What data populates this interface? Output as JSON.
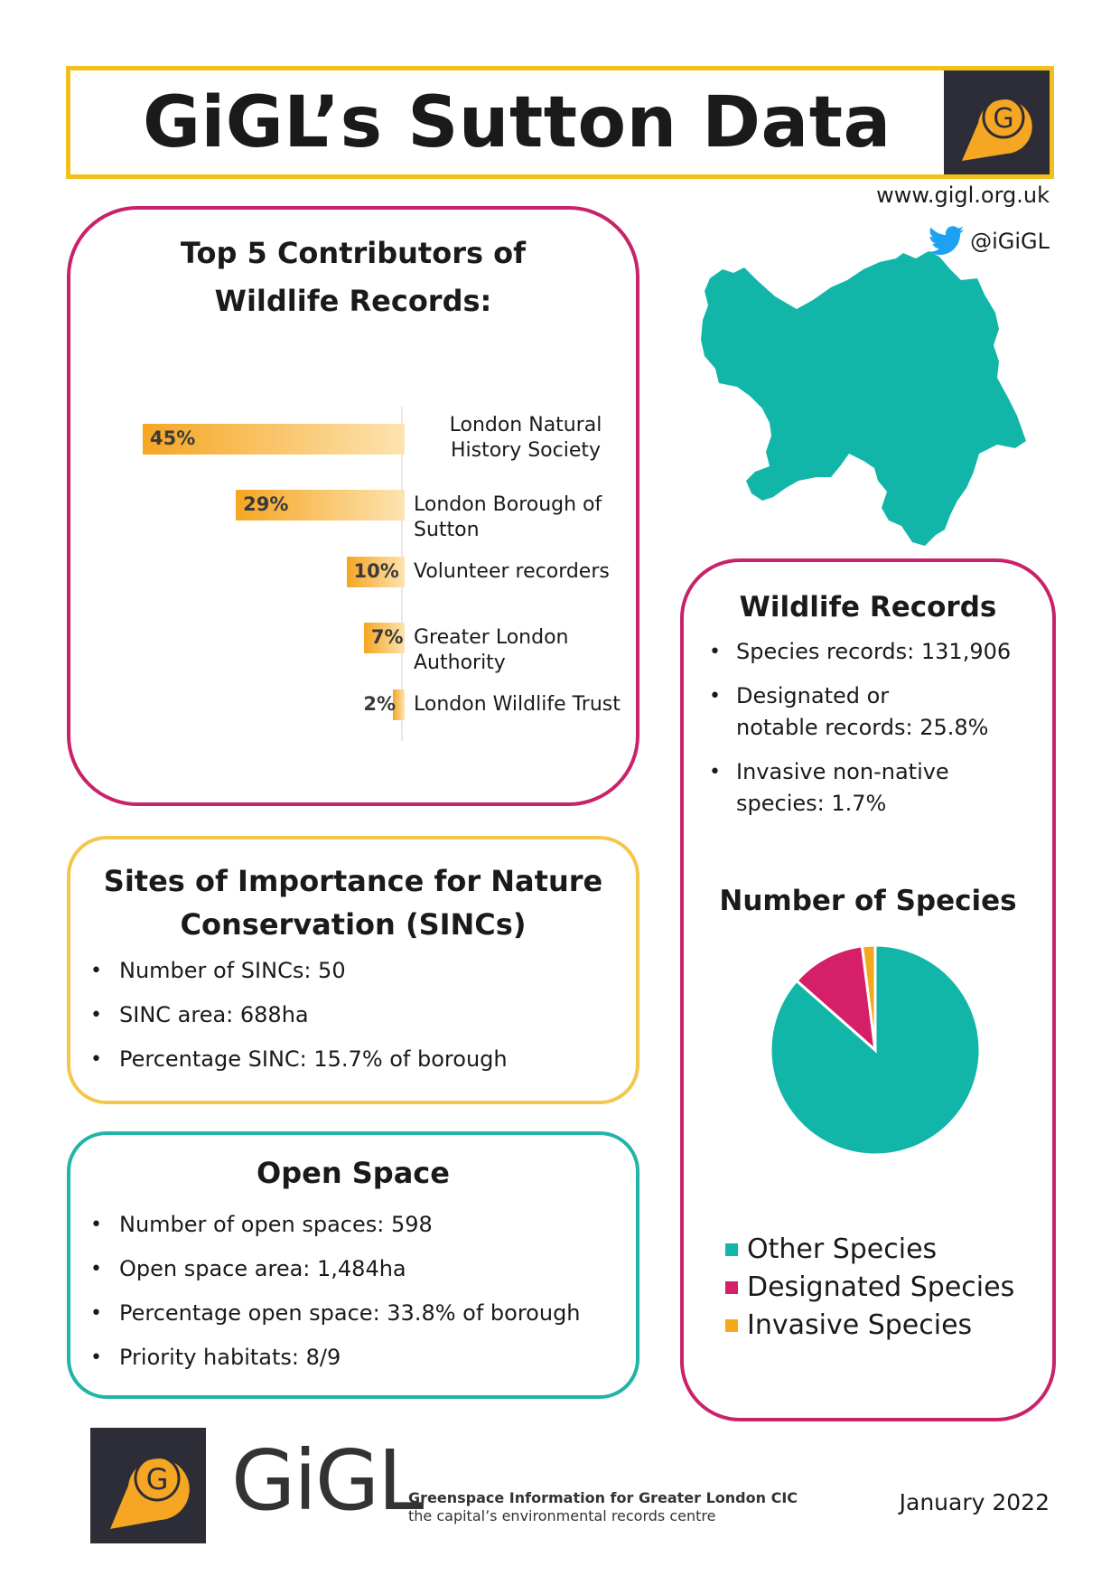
{
  "header": {
    "title": "GiGL’s Sutton Data",
    "logo_letter": "G",
    "website": "www.gigl.org.uk",
    "twitter_handle": "@iGiGL"
  },
  "contributors": {
    "title_line1": "Top 5 Contributors of",
    "title_line2": "Wildlife Records:",
    "items": [
      {
        "label": "London Natural History Society",
        "value": "45%",
        "pct": 45
      },
      {
        "label": "London Borough of Sutton",
        "value": "29%",
        "pct": 29
      },
      {
        "label": "Volunteer recorders",
        "value": "10%",
        "pct": 10
      },
      {
        "label": "Greater London Authority",
        "value": "7%",
        "pct": 7
      },
      {
        "label": "London Wildlife Trust",
        "value": "2%",
        "pct": 2
      }
    ]
  },
  "sincs": {
    "title_line1": "Sites of Importance for Nature",
    "title_line2": "Conservation (SINCs)",
    "items": [
      "Number of SINCs: 50",
      "SINC area: 688ha",
      "Percentage SINC: 15.7% of borough"
    ]
  },
  "open_space": {
    "title": "Open Space",
    "items": [
      "Number of open spaces: 598",
      "Open space area: 1,484ha",
      "Percentage open space: 33.8% of borough",
      "Priority habitats: 8/9"
    ]
  },
  "wildlife_records": {
    "title": "Wildlife Records",
    "items": [
      {
        "line1": "Species records: 131,906",
        "line2": ""
      },
      {
        "line1": "Designated or",
        "line2": "notable records: 25.8%"
      },
      {
        "line1": "Invasive non-native",
        "line2": "species: 1.7%"
      }
    ]
  },
  "chart_data": {
    "type": "pie",
    "title": "Number of Species",
    "categories": [
      "Other Species",
      "Designated Species",
      "Invasive Species"
    ],
    "values": [
      86.5,
      11.5,
      2.0
    ],
    "colors": [
      "#12b6a8",
      "#d61f69",
      "#f4a81d"
    ]
  },
  "footer": {
    "logo_letter": "G",
    "brand": "GiGL",
    "tagline1": "Greenspace Information for Greater London CIC",
    "tagline2": "the capital’s environmental records centre",
    "date": "January 2022"
  },
  "colors": {
    "gold": "#f2bf1f",
    "magenta": "#c8236a",
    "teal": "#21b4a7",
    "orange": "#f5a623",
    "dark": "#2d2d37"
  }
}
